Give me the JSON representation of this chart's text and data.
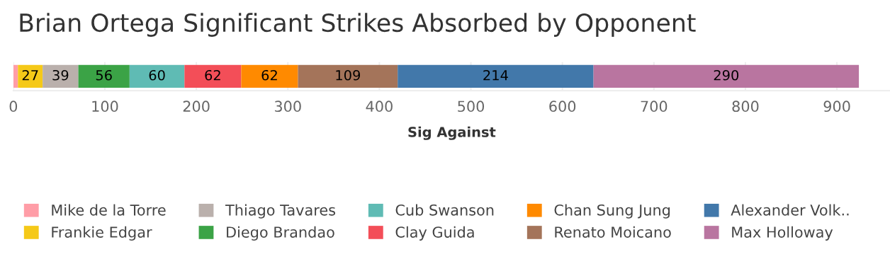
{
  "chart_data": {
    "type": "bar",
    "orientation": "horizontal",
    "stacked": true,
    "title": "Brian Ortega Significant Strikes Absorbed by Opponent",
    "xlabel": "Sig Against",
    "categories": [
      null
    ],
    "series": [
      {
        "name": "Mike de la Torre",
        "color": "#ff9da7",
        "values": [
          5
        ],
        "value_labels": [
          null
        ]
      },
      {
        "name": "Frankie Edgar",
        "color": "#f5c918",
        "values": [
          27
        ],
        "value_labels": [
          "27"
        ]
      },
      {
        "name": "Thiago Tavares",
        "color": "#bab0ac",
        "values": [
          39
        ],
        "value_labels": [
          "39"
        ]
      },
      {
        "name": "Diego Brandao",
        "color": "#3ba346",
        "values": [
          56
        ],
        "value_labels": [
          "56"
        ]
      },
      {
        "name": "Cub Swanson",
        "color": "#5fbbb4",
        "values": [
          60
        ],
        "value_labels": [
          "60"
        ]
      },
      {
        "name": "Clay Guida",
        "color": "#f34e58",
        "values": [
          62
        ],
        "value_labels": [
          "62"
        ]
      },
      {
        "name": "Chan Sung Jung",
        "color": "#ff8a00",
        "values": [
          62
        ],
        "value_labels": [
          "62"
        ]
      },
      {
        "name": "Renato Moicano",
        "color": "#a4745a",
        "values": [
          109
        ],
        "value_labels": [
          "109"
        ]
      },
      {
        "name": "Alexander Volk..",
        "color": "#4278aa",
        "values": [
          214
        ],
        "value_labels": [
          "214"
        ]
      },
      {
        "name": "Max Holloway",
        "color": "#b975a0",
        "values": [
          290
        ],
        "value_labels": [
          "290"
        ]
      }
    ],
    "xlim": [
      0,
      958
    ],
    "xticks": [
      0,
      100,
      200,
      300,
      400,
      500,
      600,
      700,
      800,
      900
    ],
    "grid": "x",
    "legend": "bottom",
    "tick_labels": "x"
  }
}
